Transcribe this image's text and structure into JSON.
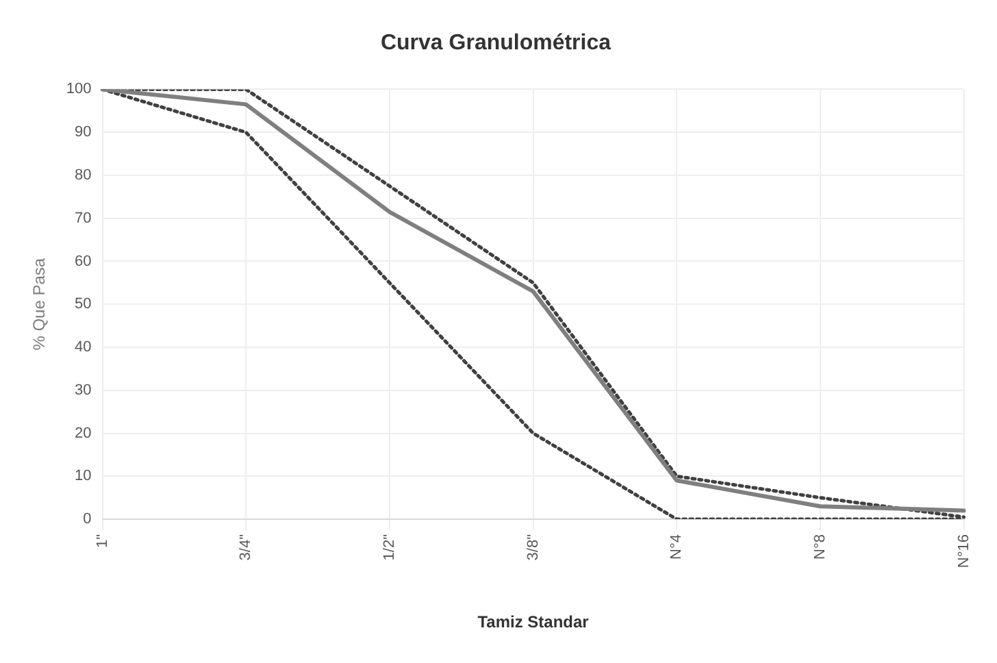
{
  "chart_data": {
    "type": "line",
    "title": "Curva Granulométrica",
    "xlabel": "Tamiz Standar",
    "ylabel": "% Que Pasa",
    "categories": [
      "1\"",
      "3/4\"",
      "1/2\"",
      "3/8\"",
      "N°4",
      "N°8",
      "N°16"
    ],
    "series": [
      {
        "color": "#7f7f7f",
        "values": [
          100,
          96.5,
          71.5,
          53,
          9,
          3,
          2
        ],
        "line_style": "solid"
      },
      {
        "color": "#404040",
        "values": [
          100,
          100,
          77.5,
          55,
          10,
          5,
          0.5
        ],
        "line_style": "dotted"
      },
      {
        "color": "#404040",
        "values": [
          100,
          90,
          55,
          20,
          0,
          0,
          0
        ],
        "line_style": "dotted"
      }
    ],
    "ylim": [
      0,
      100
    ],
    "yticks": [
      0,
      10,
      20,
      30,
      40,
      50,
      60,
      70,
      80,
      90,
      100
    ],
    "grid": true,
    "legend": false,
    "marker": "none"
  }
}
